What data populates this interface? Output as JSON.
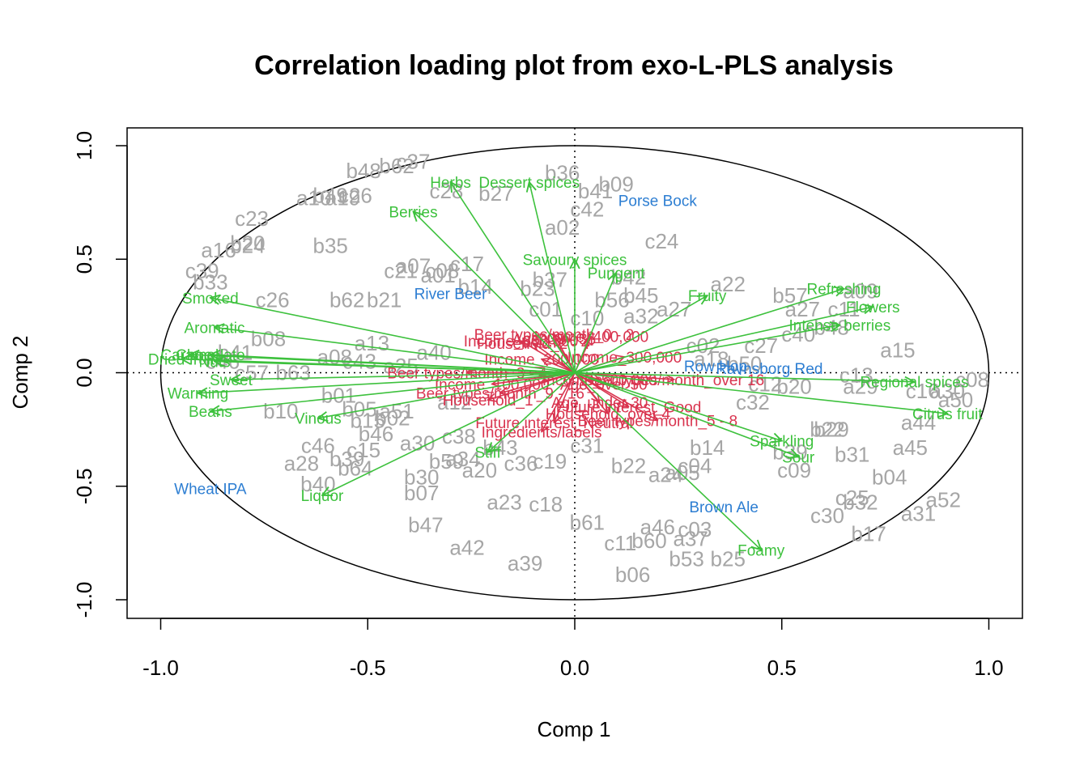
{
  "chart_data": {
    "type": "scatter",
    "title": "Correlation loading plot from exo-L-PLS analysis",
    "xlabel": "Comp 1",
    "ylabel": "Comp 2",
    "xlim": [
      -1.0,
      1.0
    ],
    "ylim": [
      -1.0,
      1.0
    ],
    "xticks": [
      "-1.0",
      "-0.5",
      "0.0",
      "0.5",
      "1.0"
    ],
    "yticks": [
      "-1.0",
      "-0.5",
      "0.0",
      "0.5",
      "1.0"
    ],
    "reference_lines": "dotted lines at x = 0 and y = 0",
    "unit_circle": true,
    "colors": {
      "samples": "#a6a6a6",
      "sensory": "#3dc13d",
      "consumer": "#d9344f",
      "beers": "#2d7ed2"
    },
    "sample_points": [
      {
        "label": "b48",
        "x": -0.51,
        "y": 0.89
      },
      {
        "label": "b62",
        "x": -0.43,
        "y": 0.91
      },
      {
        "label": "c37",
        "x": -0.39,
        "y": 0.93
      },
      {
        "label": "b36",
        "x": -0.03,
        "y": 0.88
      },
      {
        "label": "b09",
        "x": 0.1,
        "y": 0.83
      },
      {
        "label": "b41",
        "x": 0.05,
        "y": 0.8
      },
      {
        "label": "c28",
        "x": -0.31,
        "y": 0.8
      },
      {
        "label": "b27",
        "x": -0.19,
        "y": 0.79
      },
      {
        "label": "c42",
        "x": 0.03,
        "y": 0.72
      },
      {
        "label": "b49",
        "x": -0.59,
        "y": 0.78
      },
      {
        "label": "a19",
        "x": -0.56,
        "y": 0.77
      },
      {
        "label": "c26",
        "x": -0.53,
        "y": 0.78
      },
      {
        "label": "a10",
        "x": -0.63,
        "y": 0.77
      },
      {
        "label": "a02",
        "x": -0.03,
        "y": 0.64
      },
      {
        "label": "c23",
        "x": -0.78,
        "y": 0.68
      },
      {
        "label": "c24",
        "x": 0.21,
        "y": 0.58
      },
      {
        "label": "a16",
        "x": -0.86,
        "y": 0.54
      },
      {
        "label": "b20",
        "x": -0.79,
        "y": 0.57
      },
      {
        "label": "b24",
        "x": -0.79,
        "y": 0.56
      },
      {
        "label": "b35",
        "x": -0.59,
        "y": 0.56
      },
      {
        "label": "c39",
        "x": -0.9,
        "y": 0.45
      },
      {
        "label": "b33",
        "x": -0.88,
        "y": 0.4
      },
      {
        "label": "c26",
        "x": -0.73,
        "y": 0.32
      },
      {
        "label": "b62",
        "x": -0.55,
        "y": 0.32
      },
      {
        "label": "b21",
        "x": -0.46,
        "y": 0.32
      },
      {
        "label": "c21",
        "x": -0.42,
        "y": 0.45
      },
      {
        "label": "a07",
        "x": -0.39,
        "y": 0.47
      },
      {
        "label": "c08",
        "x": -0.32,
        "y": 0.45
      },
      {
        "label": "c17",
        "x": -0.26,
        "y": 0.48
      },
      {
        "label": "a01",
        "x": -0.33,
        "y": 0.43
      },
      {
        "label": "b14",
        "x": -0.24,
        "y": 0.38
      },
      {
        "label": "b37",
        "x": -0.06,
        "y": 0.41
      },
      {
        "label": "b23",
        "x": -0.09,
        "y": 0.37
      },
      {
        "label": "c01",
        "x": -0.07,
        "y": 0.28
      },
      {
        "label": "c10",
        "x": 0.03,
        "y": 0.24
      },
      {
        "label": "b56",
        "x": 0.09,
        "y": 0.32
      },
      {
        "label": "b45",
        "x": 0.16,
        "y": 0.34
      },
      {
        "label": "b42",
        "x": 0.13,
        "y": 0.42
      },
      {
        "label": "a32",
        "x": 0.16,
        "y": 0.25
      },
      {
        "label": "a27",
        "x": 0.24,
        "y": 0.28
      },
      {
        "label": "a22",
        "x": 0.37,
        "y": 0.39
      },
      {
        "label": "b57",
        "x": 0.52,
        "y": 0.34
      },
      {
        "label": "a09",
        "x": 0.69,
        "y": 0.36
      },
      {
        "label": "c11",
        "x": 0.65,
        "y": 0.28
      },
      {
        "label": "b48",
        "x": 0.62,
        "y": 0.2
      },
      {
        "label": "a27",
        "x": 0.55,
        "y": 0.28
      },
      {
        "label": "c40",
        "x": 0.54,
        "y": 0.17
      },
      {
        "label": "c27",
        "x": 0.45,
        "y": 0.12
      },
      {
        "label": "c02",
        "x": 0.31,
        "y": 0.12
      },
      {
        "label": "a18",
        "x": 0.33,
        "y": 0.06
      },
      {
        "label": "b50",
        "x": 0.41,
        "y": 0.04
      },
      {
        "label": "c12",
        "x": 0.46,
        "y": -0.05
      },
      {
        "label": "b20",
        "x": 0.53,
        "y": -0.06
      },
      {
        "label": "c32",
        "x": 0.43,
        "y": -0.13
      },
      {
        "label": "a15",
        "x": 0.78,
        "y": 0.1
      },
      {
        "label": "c13",
        "x": 0.68,
        "y": -0.01
      },
      {
        "label": "a29",
        "x": 0.69,
        "y": -0.06
      },
      {
        "label": "c16",
        "x": 0.84,
        "y": -0.08
      },
      {
        "label": "a30",
        "x": 0.9,
        "y": -0.08
      },
      {
        "label": "c08",
        "x": 0.96,
        "y": -0.03
      },
      {
        "label": "a50",
        "x": 0.92,
        "y": -0.12
      },
      {
        "label": "a44",
        "x": 0.83,
        "y": -0.22
      },
      {
        "label": "a45",
        "x": 0.81,
        "y": -0.33
      },
      {
        "label": "b22",
        "x": 0.61,
        "y": -0.25
      },
      {
        "label": "b29",
        "x": 0.62,
        "y": -0.25
      },
      {
        "label": "b31",
        "x": 0.67,
        "y": -0.36
      },
      {
        "label": "b04",
        "x": 0.76,
        "y": -0.46
      },
      {
        "label": "a52",
        "x": 0.89,
        "y": -0.56
      },
      {
        "label": "a31",
        "x": 0.83,
        "y": -0.62
      },
      {
        "label": "c25",
        "x": 0.67,
        "y": -0.55
      },
      {
        "label": "b32",
        "x": 0.69,
        "y": -0.57
      },
      {
        "label": "c30",
        "x": 0.61,
        "y": -0.63
      },
      {
        "label": "b17",
        "x": 0.71,
        "y": -0.71
      },
      {
        "label": "b39",
        "x": 0.52,
        "y": -0.35
      },
      {
        "label": "c09",
        "x": 0.53,
        "y": -0.43
      },
      {
        "label": "b14",
        "x": 0.32,
        "y": -0.33
      },
      {
        "label": "c04",
        "x": 0.29,
        "y": -0.41
      },
      {
        "label": "a05",
        "x": 0.26,
        "y": -0.44
      },
      {
        "label": "a24",
        "x": 0.22,
        "y": -0.45
      },
      {
        "label": "b22",
        "x": 0.13,
        "y": -0.41
      },
      {
        "label": "c03",
        "x": 0.29,
        "y": -0.69
      },
      {
        "label": "a46",
        "x": 0.2,
        "y": -0.68
      },
      {
        "label": "a37",
        "x": 0.28,
        "y": -0.73
      },
      {
        "label": "b60",
        "x": 0.18,
        "y": -0.74
      },
      {
        "label": "c11",
        "x": 0.11,
        "y": -0.75
      },
      {
        "label": "b53",
        "x": 0.27,
        "y": -0.82
      },
      {
        "label": "b25",
        "x": 0.37,
        "y": -0.82
      },
      {
        "label": "b06",
        "x": 0.14,
        "y": -0.89
      },
      {
        "label": "b61",
        "x": 0.03,
        "y": -0.66
      },
      {
        "label": "c18",
        "x": -0.07,
        "y": -0.58
      },
      {
        "label": "a23",
        "x": -0.17,
        "y": -0.57
      },
      {
        "label": "c19",
        "x": -0.06,
        "y": -0.39
      },
      {
        "label": "c36",
        "x": -0.13,
        "y": -0.4
      },
      {
        "label": "c31",
        "x": 0.03,
        "y": -0.32
      },
      {
        "label": "a20",
        "x": -0.23,
        "y": -0.43
      },
      {
        "label": "b43",
        "x": -0.18,
        "y": -0.33
      },
      {
        "label": "b59",
        "x": -0.31,
        "y": -0.39
      },
      {
        "label": "a34",
        "x": -0.27,
        "y": -0.38
      },
      {
        "label": "c38",
        "x": -0.28,
        "y": -0.28
      },
      {
        "label": "a12",
        "x": -0.29,
        "y": -0.13
      },
      {
        "label": "a30",
        "x": -0.38,
        "y": -0.31
      },
      {
        "label": "b30",
        "x": -0.37,
        "y": -0.46
      },
      {
        "label": "b07",
        "x": -0.37,
        "y": -0.53
      },
      {
        "label": "b47",
        "x": -0.36,
        "y": -0.67
      },
      {
        "label": "a42",
        "x": -0.26,
        "y": -0.77
      },
      {
        "label": "a39",
        "x": -0.12,
        "y": -0.84
      },
      {
        "label": "b46",
        "x": -0.48,
        "y": -0.27
      },
      {
        "label": "b05",
        "x": -0.52,
        "y": -0.16
      },
      {
        "label": "a51",
        "x": -0.43,
        "y": -0.17
      },
      {
        "label": "b02",
        "x": -0.44,
        "y": -0.2
      },
      {
        "label": "b15",
        "x": -0.5,
        "y": -0.21
      },
      {
        "label": "b01",
        "x": -0.57,
        "y": -0.1
      },
      {
        "label": "b10",
        "x": -0.71,
        "y": -0.17
      },
      {
        "label": "c46",
        "x": -0.62,
        "y": -0.32
      },
      {
        "label": "c15",
        "x": -0.51,
        "y": -0.34
      },
      {
        "label": "b39",
        "x": -0.55,
        "y": -0.38
      },
      {
        "label": "b64",
        "x": -0.53,
        "y": -0.42
      },
      {
        "label": "a28",
        "x": -0.66,
        "y": -0.4
      },
      {
        "label": "b40",
        "x": -0.62,
        "y": -0.49
      },
      {
        "label": "a13",
        "x": -0.49,
        "y": 0.13
      },
      {
        "label": "a08",
        "x": -0.58,
        "y": 0.07
      },
      {
        "label": "c43",
        "x": -0.52,
        "y": 0.05
      },
      {
        "label": "a25",
        "x": -0.42,
        "y": 0.03
      },
      {
        "label": "a40",
        "x": -0.34,
        "y": 0.09
      },
      {
        "label": "b08",
        "x": -0.74,
        "y": 0.15
      },
      {
        "label": "b41",
        "x": -0.82,
        "y": 0.09
      },
      {
        "label": "c57",
        "x": -0.78,
        "y": 0
      },
      {
        "label": "b63",
        "x": -0.68,
        "y": 0
      },
      {
        "label": "c46",
        "x": -0.85,
        "y": 0.05
      }
    ],
    "loading_vectors": [
      {
        "label": "Herbs",
        "x": -0.3,
        "y": 0.84,
        "group": "sensory"
      },
      {
        "label": "Dessert spices",
        "x": -0.11,
        "y": 0.84,
        "group": "sensory"
      },
      {
        "label": "Berries",
        "x": -0.39,
        "y": 0.71,
        "group": "sensory"
      },
      {
        "label": "Savoury spices",
        "x": 0,
        "y": 0.5,
        "group": "sensory"
      },
      {
        "label": "Pungent",
        "x": 0.1,
        "y": 0.44,
        "group": "sensory"
      },
      {
        "label": "Fruity",
        "x": 0.32,
        "y": 0.34,
        "group": "sensory"
      },
      {
        "label": "Refreshing",
        "x": 0.65,
        "y": 0.37,
        "group": "sensory"
      },
      {
        "label": "Flowers",
        "x": 0.72,
        "y": 0.29,
        "group": "sensory"
      },
      {
        "label": "Intense berries",
        "x": 0.64,
        "y": 0.21,
        "group": "sensory"
      },
      {
        "label": "Regional spices",
        "x": 0.82,
        "y": -0.04,
        "group": "sensory"
      },
      {
        "label": "Citrus fruit",
        "x": 0.9,
        "y": -0.18,
        "group": "sensory"
      },
      {
        "label": "Sparkling",
        "x": 0.5,
        "y": -0.3,
        "group": "sensory"
      },
      {
        "label": "Sour",
        "x": 0.54,
        "y": -0.37,
        "group": "sensory"
      },
      {
        "label": "Foamy",
        "x": 0.45,
        "y": -0.78,
        "group": "sensory"
      },
      {
        "label": "Smoked",
        "x": -0.88,
        "y": 0.33,
        "group": "sensory"
      },
      {
        "label": "Aromatic",
        "x": -0.87,
        "y": 0.2,
        "group": "sensory"
      },
      {
        "label": "Caramel",
        "x": -0.93,
        "y": 0.08,
        "group": "sensory"
      },
      {
        "label": "Chocolate",
        "x": -0.88,
        "y": 0.08,
        "group": "sensory"
      },
      {
        "label": "Dried fruit",
        "x": -0.95,
        "y": 0.06,
        "group": "sensory"
      },
      {
        "label": "Nuts",
        "x": -0.87,
        "y": 0.05,
        "group": "sensory"
      },
      {
        "label": "Sweet",
        "x": -0.83,
        "y": -0.03,
        "group": "sensory"
      },
      {
        "label": "Warming",
        "x": -0.91,
        "y": -0.09,
        "group": "sensory"
      },
      {
        "label": "Beans",
        "x": -0.88,
        "y": -0.17,
        "group": "sensory"
      },
      {
        "label": "Vinous",
        "x": -0.62,
        "y": -0.2,
        "group": "sensory"
      },
      {
        "label": "Liquor",
        "x": -0.61,
        "y": -0.54,
        "group": "sensory"
      },
      {
        "label": "Stiff",
        "x": -0.21,
        "y": -0.35,
        "group": "sensory"
      },
      {
        "label": "Beer types/month_0 - 2",
        "x": -0.05,
        "y": 0.17,
        "group": "consumer"
      },
      {
        "label": "Age_30 - 35",
        "x": -0.05,
        "y": 0.15,
        "group": "consumer"
      },
      {
        "label": "Income_400,000",
        "x": 0.04,
        "y": 0.16,
        "group": "consumer"
      },
      {
        "label": "Income_600,000",
        "x": -0.13,
        "y": 0.14,
        "group": "consumer"
      },
      {
        "label": "Household_2 - 4",
        "x": -0.1,
        "y": 0.13,
        "group": "consumer"
      },
      {
        "label": "Income_200,000",
        "x": -0.08,
        "y": 0.06,
        "group": "consumer"
      },
      {
        "label": "Income_300,000",
        "x": 0.12,
        "y": 0.07,
        "group": "consumer"
      },
      {
        "label": "Beer types/month_over 16",
        "x": 0.24,
        "y": -0.03,
        "group": "consumer"
      },
      {
        "label": "Beer types/month_3 - 4",
        "x": -0.26,
        "y": 0,
        "group": "consumer"
      },
      {
        "label": "Income_100,000",
        "x": -0.2,
        "y": -0.05,
        "group": "consumer"
      },
      {
        "label": "Age_over 50",
        "x": 0.07,
        "y": -0.05,
        "group": "consumer"
      },
      {
        "label": "Beer types/month_9 - 16",
        "x": -0.18,
        "y": -0.09,
        "group": "consumer"
      },
      {
        "label": "Age_under 30",
        "x": 0.06,
        "y": -0.13,
        "group": "consumer"
      },
      {
        "label": "Household_1",
        "x": -0.21,
        "y": -0.12,
        "group": "consumer"
      },
      {
        "label": "Household_over 4",
        "x": 0.08,
        "y": -0.18,
        "group": "consumer"
      },
      {
        "label": "Future interest_Good",
        "x": 0.13,
        "y": -0.15,
        "group": "consumer"
      },
      {
        "label": "Beer types/month_5 - 8",
        "x": 0.2,
        "y": -0.21,
        "group": "consumer"
      },
      {
        "label": "Future interest_Neutral",
        "x": -0.05,
        "y": -0.22,
        "group": "consumer"
      },
      {
        "label": "Ingredients/labels",
        "x": -0.08,
        "y": -0.26,
        "group": "consumer"
      },
      {
        "label": "Income_500,000",
        "x": 0.06,
        "y": -0.03,
        "group": "consumer"
      }
    ],
    "beer_points": [
      {
        "label": "Porse Bock",
        "x": 0.2,
        "y": 0.76
      },
      {
        "label": "River Beer",
        "x": -0.3,
        "y": 0.35
      },
      {
        "label": "Ravnsborg Red",
        "x": 0.47,
        "y": 0.02
      },
      {
        "label": "Brown Ale",
        "x": 0.36,
        "y": -0.59
      },
      {
        "label": "Wheat IPA",
        "x": -0.88,
        "y": -0.51
      },
      {
        "label": "Row Hop",
        "x": 0.34,
        "y": 0.03
      }
    ]
  }
}
